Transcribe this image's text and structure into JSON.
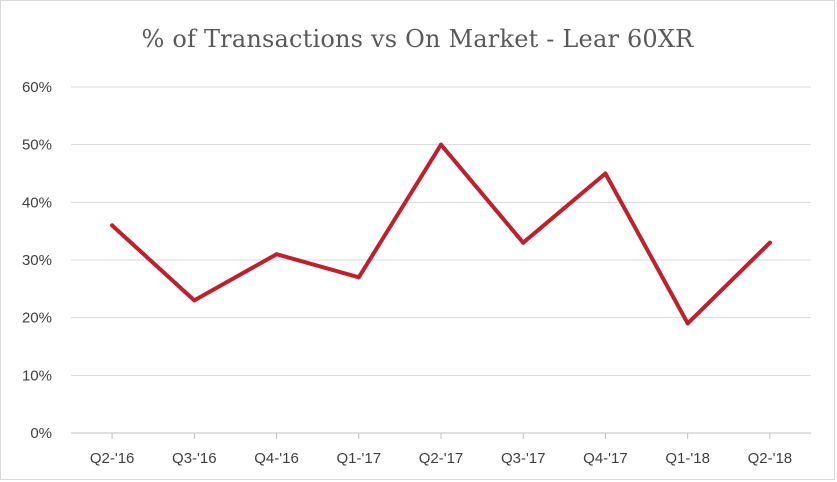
{
  "chart_data": {
    "type": "line",
    "title": "% of Transactions vs On Market - Lear 60XR",
    "xlabel": "",
    "ylabel": "",
    "categories": [
      "Q2-'16",
      "Q3-'16",
      "Q4-'16",
      "Q1-'17",
      "Q2-'17",
      "Q3-'17",
      "Q4-'17",
      "Q1-'18",
      "Q2-'18"
    ],
    "series": [
      {
        "values": [
          36,
          23,
          31,
          27,
          50,
          33,
          45,
          19,
          33
        ],
        "color": "#c0202e"
      }
    ],
    "ylim": [
      0,
      60
    ],
    "yticks": [
      0,
      10,
      20,
      30,
      40,
      50,
      60
    ],
    "ytick_labels": [
      "0%",
      "10%",
      "20%",
      "30%",
      "40%",
      "50%",
      "60%"
    ],
    "grid": true,
    "legend": "none"
  }
}
